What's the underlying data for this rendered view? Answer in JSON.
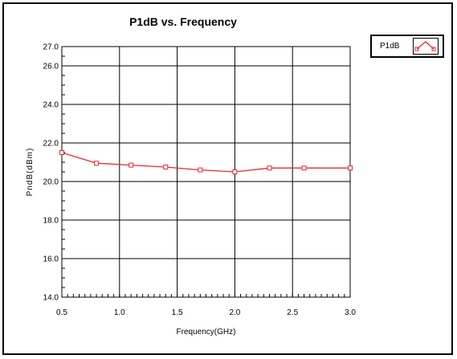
{
  "chart_data": {
    "type": "line",
    "title": "P1dB vs. Frequency",
    "xlabel": "Frequency(GHz)",
    "ylabel": "PndB(dBm)",
    "xlim": [
      0.5,
      3.0
    ],
    "ylim": [
      14.0,
      27.0
    ],
    "xticks": [
      0.5,
      1.0,
      1.5,
      2.0,
      2.5,
      3.0
    ],
    "xtick_labels": [
      "0.5",
      "1.0",
      "1.5",
      "2.0",
      "2.5",
      "3.0"
    ],
    "yticks": [
      14.0,
      16.0,
      18.0,
      20.0,
      22.0,
      24.0,
      26.0,
      27.0
    ],
    "ytick_labels": [
      "14.0",
      "16.0",
      "18.0",
      "20.0",
      "22.0",
      "24.0",
      "26.0",
      "27.0"
    ],
    "grid": true,
    "legend_position": "top-right",
    "series": [
      {
        "name": "P1dB",
        "color": "#e8282b",
        "marker": "square",
        "x": [
          0.5,
          0.8,
          1.1,
          1.4,
          1.7,
          2.0,
          2.3,
          2.6,
          3.0
        ],
        "values": [
          21.5,
          20.95,
          20.85,
          20.75,
          20.6,
          20.5,
          20.7,
          20.7,
          20.7
        ]
      }
    ]
  }
}
